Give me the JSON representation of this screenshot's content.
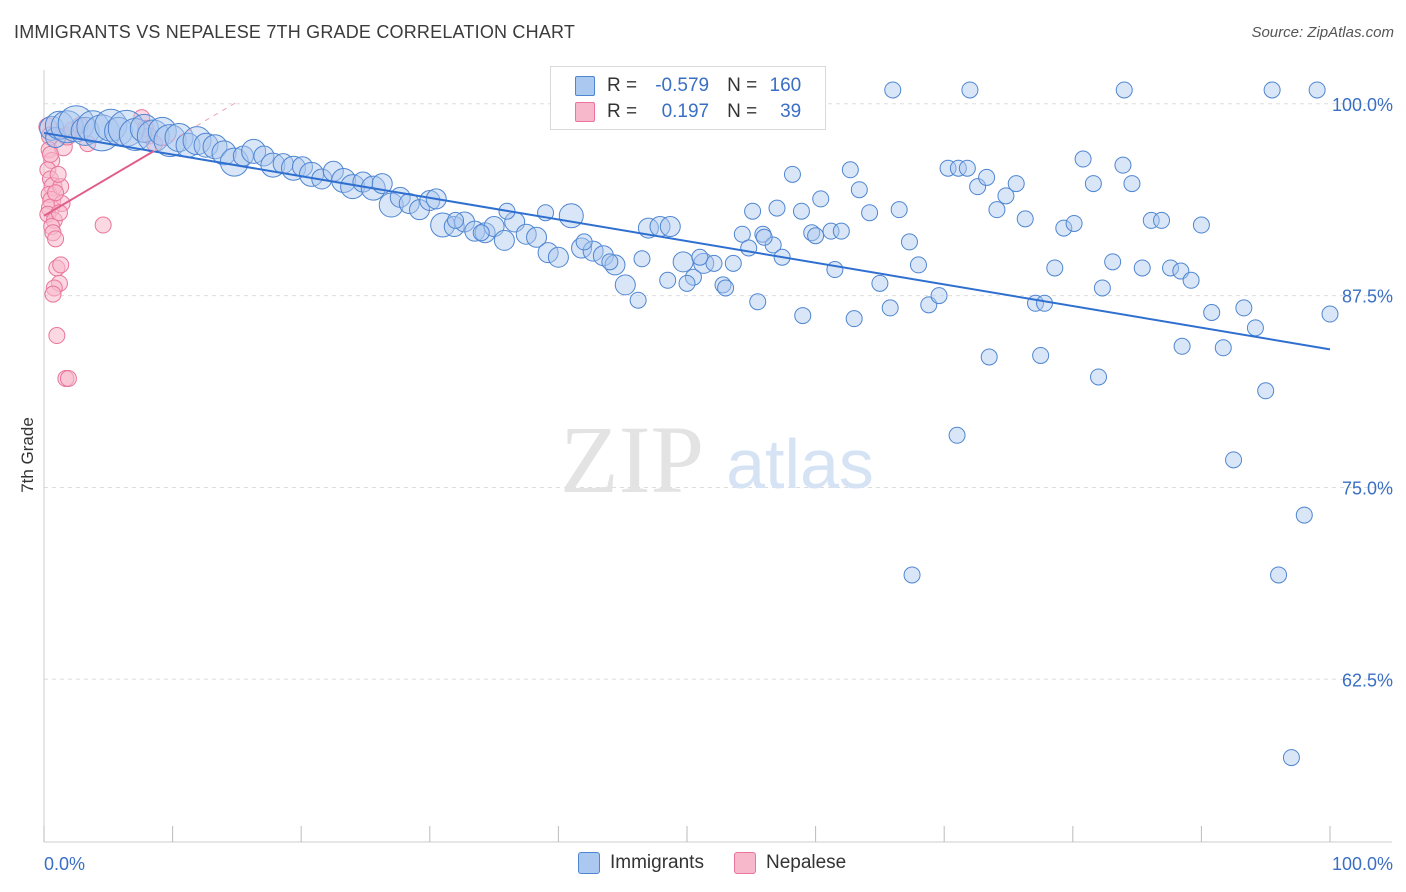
{
  "title": "IMMIGRANTS VS NEPALESE 7TH GRADE CORRELATION CHART",
  "source": "Source: ZipAtlas.com",
  "watermark": {
    "zip": "ZIP",
    "atlas": "atlas"
  },
  "legend": {
    "immigrants": {
      "r_key": "R =",
      "r_val": "-0.579",
      "n_key": "N =",
      "n_val": "160"
    },
    "nepalese": {
      "r_key": "R =",
      "r_val": "0.197",
      "n_key": "N =",
      "n_val": "39"
    }
  },
  "colors": {
    "immigrants_fill": "#aac8f0",
    "immigrants_stroke": "#4f86d1",
    "immigrants_line": "#2f6fcf",
    "nepalese_fill": "#f7b8cb",
    "nepalese_stroke": "#e8759b",
    "nepalese_line": "#e05c8a",
    "tick_label": "#3a6fc4",
    "grid": "#dddddd"
  },
  "chart_data": {
    "type": "scatter",
    "title": "IMMIGRANTS VS NEPALESE 7TH GRADE CORRELATION CHART",
    "xlabel": "",
    "ylabel": "7th Grade",
    "xlim": [
      0,
      100
    ],
    "ylim": [
      51.9,
      102.2
    ],
    "x_tick_labels": [
      "0.0%",
      "100.0%"
    ],
    "y_ticks": [
      100,
      87.5,
      75,
      62.5
    ],
    "y_tick_labels": [
      "100.0%",
      "87.5%",
      "75.0%",
      "62.5%"
    ],
    "grid": true,
    "legend_position": "top-center",
    "series": [
      {
        "name": "Immigrants",
        "trend": {
          "x": [
            0,
            100
          ],
          "y": [
            98.1,
            84.0
          ]
        },
        "points": [
          [
            0.6,
            98.4,
            12
          ],
          [
            0.9,
            97.8,
            10
          ],
          [
            1.2,
            98.6,
            14
          ],
          [
            1.8,
            98.5,
            16
          ],
          [
            2.5,
            98.7,
            18
          ],
          [
            3.2,
            98.2,
            14
          ],
          [
            3.8,
            98.5,
            16
          ],
          [
            4.5,
            98.1,
            18
          ],
          [
            5.2,
            98.6,
            16
          ],
          [
            5.8,
            98.2,
            14
          ],
          [
            6.4,
            98.4,
            18
          ],
          [
            7.1,
            98.0,
            16
          ],
          [
            7.8,
            98.4,
            14
          ],
          [
            8.5,
            97.9,
            16
          ],
          [
            9.2,
            98.2,
            14
          ],
          [
            9.8,
            97.6,
            16
          ],
          [
            10.5,
            97.8,
            14
          ],
          [
            11.2,
            97.3,
            12
          ],
          [
            11.9,
            97.6,
            14
          ],
          [
            12.6,
            97.3,
            12
          ],
          [
            13.3,
            97.2,
            12
          ],
          [
            14.0,
            96.8,
            12
          ],
          [
            14.8,
            96.2,
            14
          ],
          [
            15.5,
            96.6,
            10
          ],
          [
            16.3,
            96.9,
            12
          ],
          [
            17.1,
            96.6,
            10
          ],
          [
            17.8,
            96.0,
            12
          ],
          [
            18.6,
            96.1,
            10
          ],
          [
            19.4,
            95.8,
            12
          ],
          [
            20.1,
            95.9,
            10
          ],
          [
            20.8,
            95.4,
            12
          ],
          [
            21.6,
            95.1,
            10
          ],
          [
            22.5,
            95.6,
            10
          ],
          [
            23.3,
            95.0,
            12
          ],
          [
            24.0,
            94.6,
            12
          ],
          [
            24.8,
            94.9,
            10
          ],
          [
            25.6,
            94.5,
            12
          ],
          [
            26.3,
            94.8,
            10
          ],
          [
            27.0,
            93.4,
            12
          ],
          [
            27.7,
            93.9,
            10
          ],
          [
            28.4,
            93.5,
            10
          ],
          [
            29.2,
            93.1,
            10
          ],
          [
            30.0,
            93.7,
            10
          ],
          [
            31.0,
            92.1,
            12
          ],
          [
            31.9,
            92.0,
            10
          ],
          [
            32.7,
            92.3,
            10
          ],
          [
            33.5,
            91.7,
            10
          ],
          [
            34.3,
            91.6,
            10
          ],
          [
            35.0,
            92.0,
            10
          ],
          [
            35.8,
            91.1,
            10
          ],
          [
            36.6,
            92.3,
            10
          ],
          [
            37.5,
            91.5,
            10
          ],
          [
            38.3,
            91.3,
            10
          ],
          [
            39.2,
            90.3,
            10
          ],
          [
            40.0,
            90.0,
            10
          ],
          [
            36.0,
            93.0,
            8
          ],
          [
            41.0,
            92.7,
            12
          ],
          [
            41.8,
            90.6,
            10
          ],
          [
            42.7,
            90.4,
            10
          ],
          [
            43.5,
            90.1,
            10
          ],
          [
            44.4,
            89.5,
            10
          ],
          [
            45.2,
            88.2,
            10
          ],
          [
            46.2,
            87.2,
            8
          ],
          [
            47.0,
            91.9,
            10
          ],
          [
            47.9,
            92.0,
            10
          ],
          [
            48.7,
            92.0,
            10
          ],
          [
            49.7,
            89.7,
            10
          ],
          [
            50.5,
            88.7,
            8
          ],
          [
            51.3,
            89.6,
            10
          ],
          [
            52.1,
            89.6,
            8
          ],
          [
            52.8,
            88.2,
            8
          ],
          [
            53.6,
            89.6,
            8
          ],
          [
            54.3,
            91.5,
            8
          ],
          [
            55.1,
            93.0,
            8
          ],
          [
            55.9,
            91.5,
            8
          ],
          [
            56.7,
            90.8,
            8
          ],
          [
            57.4,
            90.0,
            8
          ],
          [
            58.2,
            95.4,
            8
          ],
          [
            58.9,
            93.0,
            8
          ],
          [
            59.7,
            91.6,
            8
          ],
          [
            60.4,
            93.8,
            8
          ],
          [
            61.2,
            91.7,
            8
          ],
          [
            62.0,
            91.7,
            8
          ],
          [
            62.7,
            95.7,
            8
          ],
          [
            63.4,
            94.4,
            8
          ],
          [
            64.2,
            92.9,
            8
          ],
          [
            65.0,
            88.3,
            8
          ],
          [
            65.8,
            86.7,
            8
          ],
          [
            66.5,
            93.1,
            8
          ],
          [
            67.3,
            91.0,
            8
          ],
          [
            68.0,
            89.5,
            8
          ],
          [
            68.8,
            86.9,
            8
          ],
          [
            69.6,
            87.5,
            8
          ],
          [
            70.3,
            95.8,
            8
          ],
          [
            71.1,
            95.8,
            8
          ],
          [
            71.8,
            95.8,
            8
          ],
          [
            72.6,
            94.6,
            8
          ],
          [
            73.3,
            95.2,
            8
          ],
          [
            74.1,
            93.1,
            8
          ],
          [
            74.8,
            94.0,
            8
          ],
          [
            75.6,
            94.8,
            8
          ],
          [
            76.3,
            92.5,
            8
          ],
          [
            77.1,
            87.0,
            8
          ],
          [
            77.8,
            87.0,
            8
          ],
          [
            78.6,
            89.3,
            8
          ],
          [
            79.3,
            91.9,
            8
          ],
          [
            80.1,
            92.2,
            8
          ],
          [
            80.8,
            96.4,
            8
          ],
          [
            81.6,
            94.8,
            8
          ],
          [
            82.3,
            88.0,
            8
          ],
          [
            83.1,
            89.7,
            8
          ],
          [
            83.9,
            96.0,
            8
          ],
          [
            84.6,
            94.8,
            8
          ],
          [
            85.4,
            89.3,
            8
          ],
          [
            86.1,
            92.4,
            8
          ],
          [
            86.9,
            92.4,
            8
          ],
          [
            87.6,
            89.3,
            8
          ],
          [
            88.4,
            89.1,
            8
          ],
          [
            89.2,
            88.5,
            8
          ],
          [
            90.0,
            92.1,
            8
          ],
          [
            90.8,
            86.4,
            8
          ],
          [
            91.7,
            84.1,
            8
          ],
          [
            92.5,
            76.8,
            8
          ],
          [
            93.3,
            86.7,
            8
          ],
          [
            94.2,
            85.4,
            8
          ],
          [
            95.0,
            81.3,
            8
          ],
          [
            96.0,
            69.3,
            8
          ],
          [
            97.0,
            57.4,
            8
          ],
          [
            98.0,
            73.2,
            8
          ],
          [
            99.0,
            100.9,
            8
          ],
          [
            100.0,
            86.3,
            8
          ],
          [
            66.0,
            100.9,
            8
          ],
          [
            72.0,
            100.9,
            8
          ],
          [
            84.0,
            100.9,
            8
          ],
          [
            95.5,
            100.9,
            8
          ],
          [
            73.5,
            83.5,
            8
          ],
          [
            77.5,
            83.6,
            8
          ],
          [
            82.0,
            82.2,
            8
          ],
          [
            88.5,
            84.2,
            8
          ],
          [
            63.0,
            86.0,
            8
          ],
          [
            59.0,
            86.2,
            8
          ],
          [
            55.5,
            87.1,
            8
          ],
          [
            71.0,
            78.4,
            8
          ],
          [
            67.5,
            69.3,
            8
          ],
          [
            30.5,
            93.8,
            10
          ],
          [
            32.0,
            92.4,
            8
          ],
          [
            34.0,
            91.6,
            8
          ],
          [
            39.0,
            92.9,
            8
          ],
          [
            42.0,
            91.0,
            8
          ],
          [
            44.0,
            89.7,
            8
          ],
          [
            46.5,
            89.9,
            8
          ],
          [
            48.5,
            88.5,
            8
          ],
          [
            50.0,
            88.3,
            8
          ],
          [
            51.0,
            90.0,
            8
          ],
          [
            53.0,
            88.0,
            8
          ],
          [
            54.8,
            90.6,
            8
          ],
          [
            56.0,
            91.3,
            8
          ],
          [
            57.0,
            93.2,
            8
          ],
          [
            60.0,
            91.4,
            8
          ],
          [
            61.5,
            89.2,
            8
          ]
        ]
      },
      {
        "name": "Nepalese",
        "trend": {
          "x": [
            0,
            8.5
          ],
          "y": [
            92.7,
            96.9
          ]
        },
        "points": [
          [
            0.3,
            98.5,
            9
          ],
          [
            0.5,
            97.9,
            9
          ],
          [
            0.4,
            97.0,
            8
          ],
          [
            0.6,
            96.3,
            8
          ],
          [
            0.3,
            95.7,
            8
          ],
          [
            0.5,
            95.1,
            8
          ],
          [
            0.7,
            94.6,
            9
          ],
          [
            0.4,
            94.1,
            8
          ],
          [
            0.6,
            93.7,
            9
          ],
          [
            0.5,
            93.2,
            9
          ],
          [
            0.3,
            92.8,
            8
          ],
          [
            0.8,
            92.4,
            8
          ],
          [
            0.6,
            92.0,
            8
          ],
          [
            0.7,
            91.6,
            8
          ],
          [
            0.9,
            91.2,
            8
          ],
          [
            1.0,
            89.3,
            8
          ],
          [
            1.3,
            89.5,
            8
          ],
          [
            1.2,
            88.3,
            8
          ],
          [
            0.8,
            88.0,
            8
          ],
          [
            0.7,
            87.6,
            8
          ],
          [
            1.0,
            84.9,
            8
          ],
          [
            1.7,
            82.1,
            8
          ],
          [
            1.9,
            82.1,
            8
          ],
          [
            1.3,
            94.6,
            8
          ],
          [
            1.1,
            95.4,
            8
          ],
          [
            1.4,
            93.5,
            8
          ],
          [
            1.2,
            92.9,
            8
          ],
          [
            1.5,
            97.2,
            9
          ],
          [
            1.8,
            97.9,
            9
          ],
          [
            2.2,
            98.3,
            8
          ],
          [
            2.8,
            98.6,
            8
          ],
          [
            3.4,
            97.4,
            8
          ],
          [
            4.6,
            92.1,
            8
          ],
          [
            7.6,
            99.1,
            8
          ],
          [
            7.9,
            98.4,
            8
          ],
          [
            8.2,
            97.9,
            8
          ],
          [
            8.6,
            97.4,
            8
          ],
          [
            0.9,
            94.2,
            8
          ],
          [
            0.5,
            96.7,
            8
          ]
        ]
      }
    ]
  }
}
